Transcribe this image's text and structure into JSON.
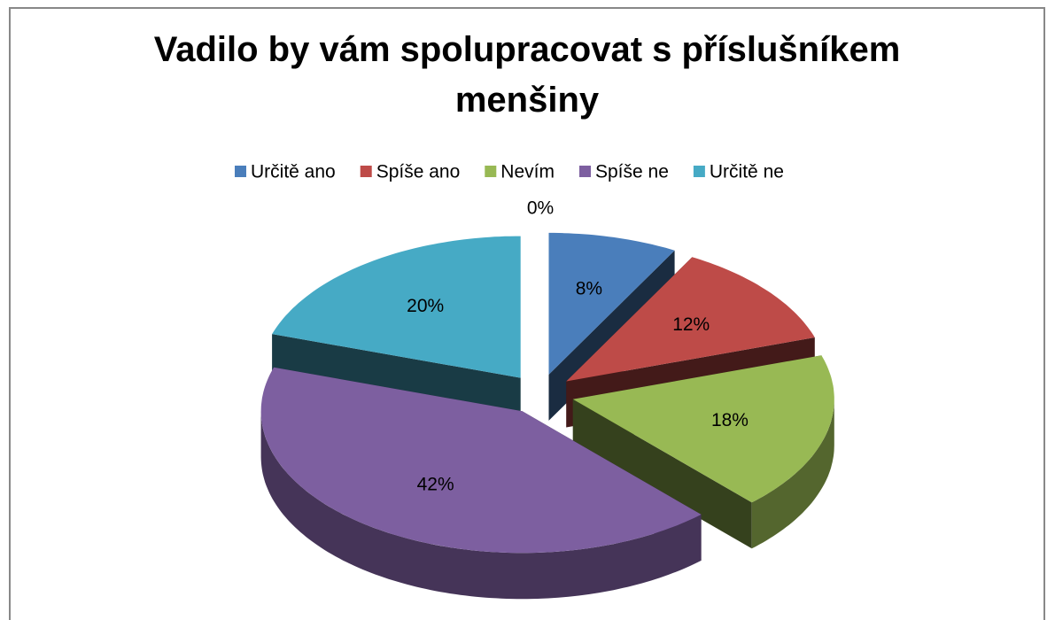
{
  "chart_data": {
    "type": "pie3d",
    "title": "Vadilo by vám spolupracovat s příslušníkem menšiny",
    "categories": [
      null,
      "Určitě ano",
      "Spíše ano",
      "Nevím",
      "Spíše ne",
      "Určitě ne"
    ],
    "values": [
      0,
      8,
      12,
      18,
      42,
      20
    ],
    "value_labels": [
      "0%",
      "8%",
      "12%",
      "18%",
      "42%",
      "20%"
    ],
    "colors": [
      "#4a7ebb",
      "#4a7ebb",
      "#be4b48",
      "#98b954",
      "#7d5fa0",
      "#46aac5"
    ],
    "legend": "top"
  }
}
